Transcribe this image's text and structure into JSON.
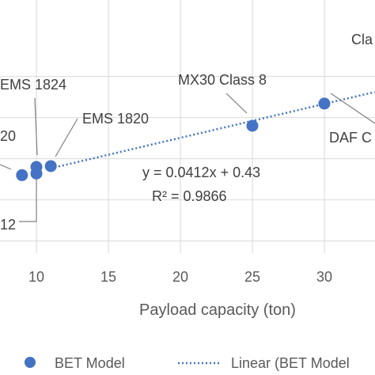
{
  "chart_data": {
    "type": "scatter",
    "xlabel": "Payload capacity (ton)",
    "ylabel": "",
    "title": "",
    "x_ticks": [
      10,
      15,
      20,
      25,
      30
    ],
    "xlim": [
      8.2,
      33.5
    ],
    "ylim": [
      -0.5,
      2.1
    ],
    "grid": true,
    "colors": {
      "points": "#4472c4",
      "trendline": "#4472c4",
      "grid": "#d9d9d9",
      "text": "#595959",
      "label_line": "#7f7f7f"
    },
    "series": [
      {
        "name": "BET Model",
        "points": [
          {
            "x": 9,
            "y": 0.8,
            "label": "20"
          },
          {
            "x": 10,
            "y": 0.82,
            "label": "12"
          },
          {
            "x": 10,
            "y": 0.9,
            "label": "EMS 1824"
          },
          {
            "x": 11,
            "y": 0.91,
            "label": "EMS 1820"
          },
          {
            "x": 25,
            "y": 1.4,
            "label": "MX30 Class 8"
          },
          {
            "x": 30,
            "y": 1.67,
            "label": "DAF C"
          }
        ]
      }
    ],
    "trendline": {
      "name": "Linear (BET Model",
      "slope": 0.0412,
      "intercept": 0.43,
      "equation": "y = 0.0412x + 0.43",
      "r2": "R² = 0.9866"
    },
    "annotations": [
      {
        "text": "Cla"
      }
    ],
    "legend": {
      "position": "bottom",
      "entries": [
        "BET Model",
        "Linear (BET Model"
      ]
    }
  }
}
